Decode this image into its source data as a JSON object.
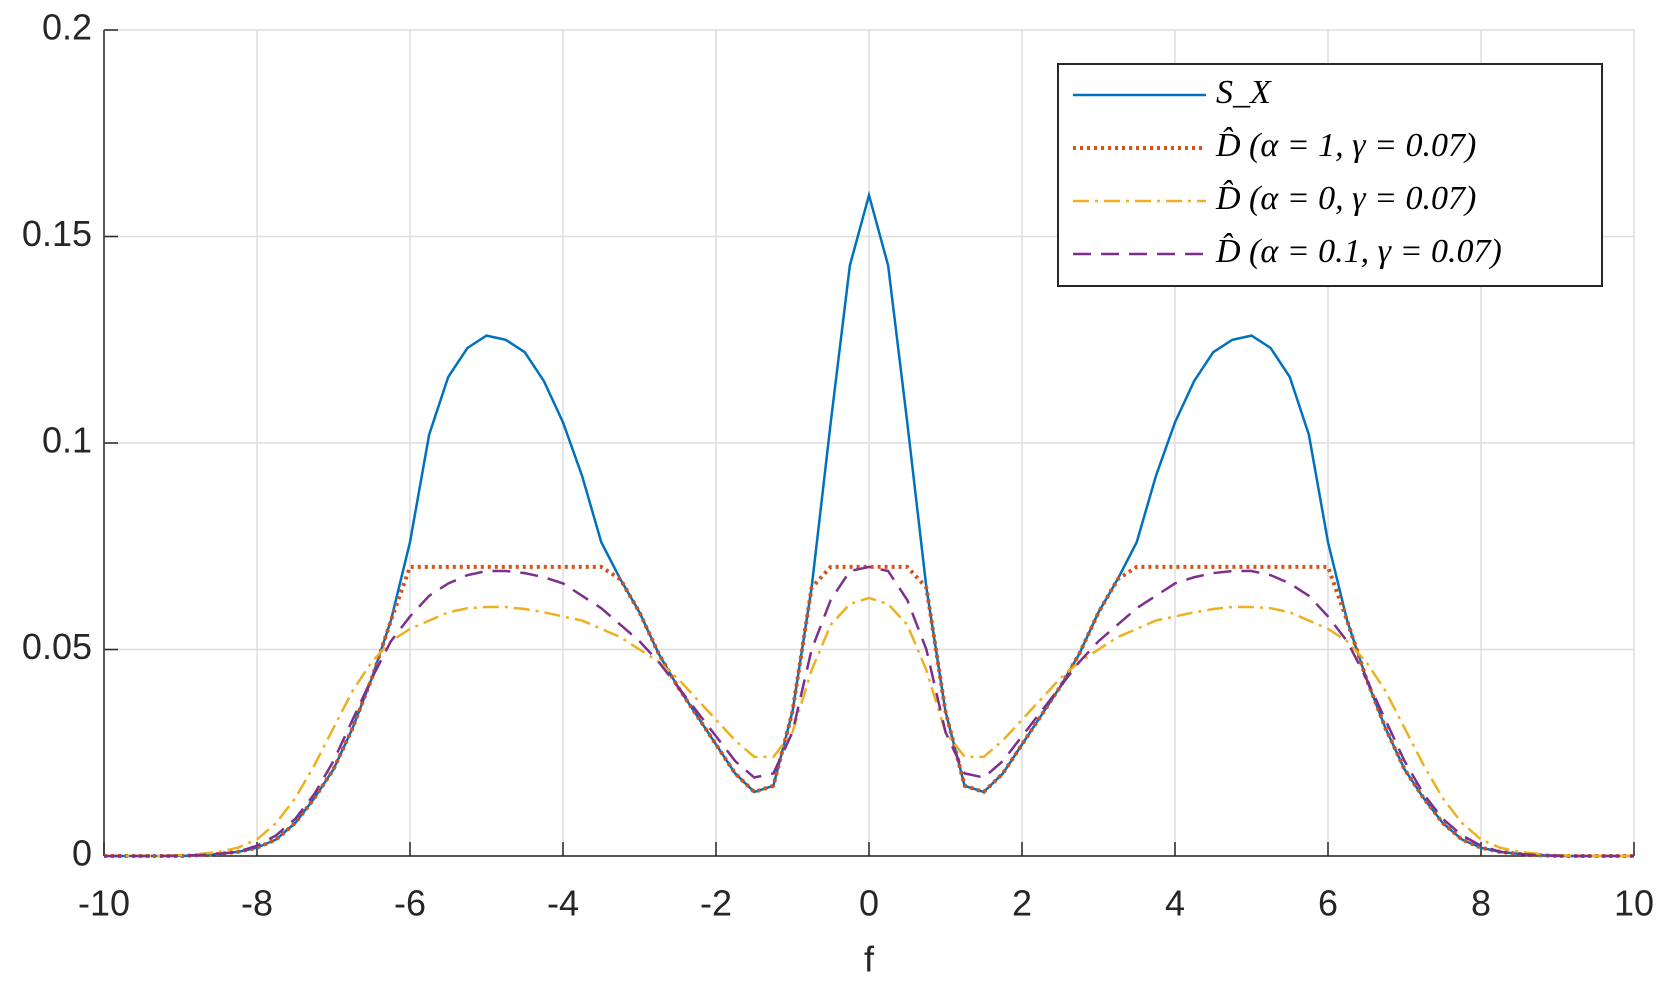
{
  "chart_data": {
    "type": "line",
    "xlabel": "f",
    "x": [
      -10,
      -9.75,
      -9.5,
      -9.25,
      -9,
      -8.75,
      -8.5,
      -8.25,
      -8,
      -7.75,
      -7.5,
      -7.25,
      -7,
      -6.75,
      -6.5,
      -6.25,
      -6,
      -5.75,
      -5.5,
      -5.25,
      -5,
      -4.75,
      -4.5,
      -4.25,
      -4,
      -3.75,
      -3.5,
      -3.25,
      -3,
      -2.75,
      -2.5,
      -2.25,
      -2,
      -1.75,
      -1.5,
      -1.25,
      -1,
      -0.75,
      -0.5,
      -0.25,
      0,
      0.25,
      0.5,
      0.75,
      1,
      1.25,
      1.5,
      1.75,
      2,
      2.25,
      2.5,
      2.75,
      3,
      3.25,
      3.5,
      3.75,
      4,
      4.25,
      4.5,
      4.75,
      5,
      5.25,
      5.5,
      5.75,
      6,
      6.25,
      6.5,
      6.75,
      7,
      7.25,
      7.5,
      7.75,
      8,
      8.25,
      8.5,
      8.75,
      9,
      9.25,
      9.5,
      9.75,
      10
    ],
    "series": [
      {
        "name": "S_X",
        "color": "#0072BD",
        "linestyle": "solid",
        "values": [
          0,
          0,
          0,
          0,
          0,
          0.0002,
          0.0005,
          0.001,
          0.002,
          0.004,
          0.008,
          0.014,
          0.021,
          0.031,
          0.043,
          0.057,
          0.076,
          0.102,
          0.116,
          0.123,
          0.126,
          0.125,
          0.122,
          0.115,
          0.105,
          0.092,
          0.076,
          0.067,
          0.059,
          0.049,
          0.041,
          0.034,
          0.027,
          0.02,
          0.0155,
          0.017,
          0.035,
          0.065,
          0.105,
          0.143,
          0.16,
          0.143,
          0.105,
          0.065,
          0.035,
          0.017,
          0.0155,
          0.02,
          0.027,
          0.034,
          0.041,
          0.049,
          0.059,
          0.067,
          0.076,
          0.092,
          0.105,
          0.115,
          0.122,
          0.125,
          0.126,
          0.123,
          0.116,
          0.102,
          0.076,
          0.057,
          0.043,
          0.031,
          0.021,
          0.014,
          0.008,
          0.004,
          0.002,
          0.001,
          0.0005,
          0.0002,
          0,
          0,
          0,
          0,
          0
        ]
      },
      {
        "name": "D̂ (α = 1, γ = 0.07)",
        "color": "#D95319",
        "linestyle": "dotted",
        "values": [
          0,
          0,
          0,
          0,
          0,
          0.0002,
          0.0005,
          0.001,
          0.002,
          0.004,
          0.008,
          0.014,
          0.021,
          0.031,
          0.043,
          0.057,
          0.07,
          0.07,
          0.07,
          0.07,
          0.07,
          0.07,
          0.07,
          0.07,
          0.07,
          0.07,
          0.07,
          0.067,
          0.059,
          0.049,
          0.041,
          0.034,
          0.027,
          0.02,
          0.0155,
          0.017,
          0.035,
          0.065,
          0.07,
          0.07,
          0.07,
          0.07,
          0.07,
          0.065,
          0.035,
          0.017,
          0.0155,
          0.02,
          0.027,
          0.034,
          0.041,
          0.049,
          0.059,
          0.067,
          0.07,
          0.07,
          0.07,
          0.07,
          0.07,
          0.07,
          0.07,
          0.07,
          0.07,
          0.07,
          0.07,
          0.057,
          0.043,
          0.031,
          0.021,
          0.014,
          0.008,
          0.004,
          0.002,
          0.001,
          0.0005,
          0.0002,
          0,
          0,
          0,
          0,
          0
        ]
      },
      {
        "name": "D̂ (α = 0, γ = 0.07)",
        "color": "#EDB120",
        "linestyle": "dashdot",
        "values": [
          0,
          0,
          0,
          0,
          0.0002,
          0.0005,
          0.001,
          0.002,
          0.004,
          0.008,
          0.014,
          0.022,
          0.031,
          0.04,
          0.047,
          0.052,
          0.055,
          0.057,
          0.059,
          0.06,
          0.0603,
          0.0603,
          0.0598,
          0.059,
          0.058,
          0.057,
          0.055,
          0.053,
          0.05,
          0.047,
          0.043,
          0.038,
          0.033,
          0.028,
          0.024,
          0.024,
          0.03,
          0.045,
          0.056,
          0.061,
          0.0625,
          0.061,
          0.056,
          0.045,
          0.03,
          0.024,
          0.024,
          0.028,
          0.033,
          0.038,
          0.043,
          0.047,
          0.05,
          0.053,
          0.055,
          0.057,
          0.058,
          0.059,
          0.0598,
          0.0603,
          0.0603,
          0.06,
          0.059,
          0.057,
          0.055,
          0.052,
          0.047,
          0.04,
          0.031,
          0.022,
          0.014,
          0.008,
          0.004,
          0.002,
          0.001,
          0.0005,
          0.0002,
          0,
          0,
          0,
          0
        ]
      },
      {
        "name": "D̂ (α = 0.1, γ = 0.07)",
        "color": "#7E2F8E",
        "linestyle": "dashed",
        "values": [
          0,
          0,
          0,
          0,
          0.0001,
          0.0002,
          0.0005,
          0.001,
          0.0025,
          0.005,
          0.009,
          0.015,
          0.023,
          0.033,
          0.043,
          0.052,
          0.058,
          0.063,
          0.066,
          0.068,
          0.069,
          0.069,
          0.0685,
          0.0675,
          0.066,
          0.063,
          0.06,
          0.056,
          0.052,
          0.047,
          0.041,
          0.035,
          0.029,
          0.023,
          0.019,
          0.02,
          0.03,
          0.05,
          0.062,
          0.069,
          0.07,
          0.069,
          0.062,
          0.05,
          0.03,
          0.02,
          0.019,
          0.023,
          0.029,
          0.035,
          0.041,
          0.047,
          0.052,
          0.056,
          0.06,
          0.063,
          0.066,
          0.0675,
          0.0685,
          0.069,
          0.069,
          0.068,
          0.066,
          0.063,
          0.058,
          0.052,
          0.043,
          0.033,
          0.023,
          0.015,
          0.009,
          0.005,
          0.0025,
          0.001,
          0.0005,
          0.0002,
          0.0001,
          0,
          0,
          0,
          0
        ]
      }
    ],
    "xlim": [
      -10,
      10
    ],
    "xticks": [
      -10,
      -8,
      -6,
      -4,
      -2,
      0,
      2,
      4,
      6,
      8,
      10
    ],
    "ylim": [
      0,
      0.2
    ],
    "yticks": [
      0,
      0.05,
      0.1,
      0.15,
      0.2
    ],
    "grid": true,
    "legend": "upper right"
  }
}
